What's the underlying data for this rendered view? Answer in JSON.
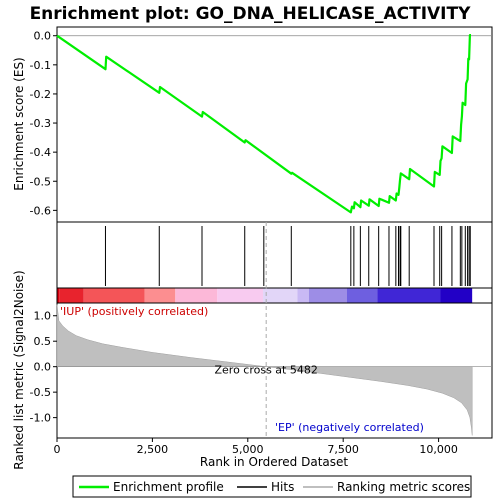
{
  "chart_data": {
    "type": "line",
    "title": "Enrichment plot: GO_DNA_HELICASE_ACTIVITY",
    "x_label": "Rank in Ordered Dataset",
    "es_axis_label": "Enrichment score (ES)",
    "metric_axis_label": "Ranked list metric (Signal2Noise)",
    "x_range": [
      0,
      11400
    ],
    "x_ticks": [
      0,
      2500,
      5000,
      7500,
      10000
    ],
    "x_tick_labels": [
      "0",
      "2,500",
      "5,000",
      "7,500",
      "10,000"
    ],
    "es_range": [
      -0.64,
      0.03
    ],
    "es_ticks": [
      0.0,
      -0.1,
      -0.2,
      -0.3,
      -0.4,
      -0.5,
      -0.6
    ],
    "es_tick_labels": [
      "0.0",
      "-0.1",
      "-0.2",
      "-0.3",
      "-0.4",
      "-0.5",
      "-0.6"
    ],
    "metric_range": [
      -1.4,
      1.25
    ],
    "metric_ticks": [
      1.0,
      0.5,
      0.0,
      -0.5,
      -1.0
    ],
    "metric_tick_labels": [
      "1.0",
      "0.5",
      "0.0",
      "-0.5",
      "-1.0"
    ],
    "enrichment_profile": {
      "x": [
        0,
        1270,
        1290,
        2680,
        2700,
        3800,
        3820,
        4920,
        4940,
        6140,
        6160,
        7700,
        7730,
        7780,
        7800,
        7950,
        7970,
        8170,
        8190,
        8430,
        8450,
        8700,
        8720,
        8880,
        8900,
        8950,
        8970,
        8990,
        9010,
        9230,
        9250,
        9880,
        9900,
        10030,
        10050,
        10080,
        10100,
        10350,
        10370,
        10570,
        10590,
        10610,
        10630,
        10700,
        10720,
        10760,
        10780,
        10800,
        10820,
        10850
      ],
      "es": [
        0.0,
        -0.115,
        -0.072,
        -0.196,
        -0.176,
        -0.278,
        -0.262,
        -0.367,
        -0.359,
        -0.474,
        -0.471,
        -0.607,
        -0.587,
        -0.593,
        -0.572,
        -0.589,
        -0.566,
        -0.584,
        -0.562,
        -0.585,
        -0.56,
        -0.574,
        -0.551,
        -0.566,
        -0.542,
        -0.547,
        -0.522,
        -0.496,
        -0.473,
        -0.493,
        -0.458,
        -0.518,
        -0.468,
        -0.478,
        -0.43,
        -0.421,
        -0.38,
        -0.403,
        -0.346,
        -0.362,
        -0.306,
        -0.277,
        -0.23,
        -0.238,
        -0.164,
        -0.15,
        -0.079,
        -0.081,
        0.002,
        0.002
      ]
    },
    "hits": [
      1270,
      2680,
      3800,
      4920,
      5420,
      6140,
      7700,
      7780,
      7950,
      8170,
      8430,
      8700,
      8880,
      8950,
      8990,
      9010,
      9230,
      9880,
      10030,
      10080,
      10350,
      10570,
      10610,
      10700,
      10760,
      10800,
      10830
    ],
    "metric_curve": {
      "x": [
        0,
        50,
        150,
        300,
        500,
        800,
        1200,
        1700,
        2500,
        3500,
        4500,
        5482,
        6500,
        7500,
        8500,
        9200,
        9700,
        10100,
        10400,
        10600,
        10750,
        10820,
        10860,
        10880
      ],
      "y": [
        1.22,
        0.9,
        0.8,
        0.7,
        0.61,
        0.53,
        0.45,
        0.38,
        0.28,
        0.18,
        0.09,
        0.0,
        -0.09,
        -0.19,
        -0.29,
        -0.37,
        -0.44,
        -0.52,
        -0.61,
        -0.71,
        -0.85,
        -1.0,
        -1.2,
        -1.35
      ]
    },
    "zero_cross_label": "Zero cross at 5482",
    "zero_cross_x": 5482,
    "positive_label": "'IUP' (positively correlated)",
    "negative_label": "'EP' (negatively correlated)",
    "dataset_end": 10880,
    "bar_colors": [
      "#d7000f",
      "#e8232d",
      "#f45558",
      "#fc8e90",
      "#fcb8d8",
      "#f8cbf0",
      "#e2d6f8",
      "#c9b9f4",
      "#9d8de6",
      "#6e5fe0",
      "#4026d6",
      "#2200c6"
    ],
    "bar_boundaries": [
      0,
      60,
      700,
      2300,
      3100,
      4200,
      5400,
      6300,
      6600,
      7600,
      8400,
      10050,
      10880
    ],
    "legend": [
      "Enrichment profile",
      "Hits",
      "Ranking metric scores"
    ],
    "colors": {
      "profile": "#00ee00",
      "hit": "#000000",
      "metric_fill": "#bfbfbf",
      "positive_text": "#cc0000",
      "negative_text": "#0000cc",
      "zero_line": "#aaaaaa"
    }
  }
}
